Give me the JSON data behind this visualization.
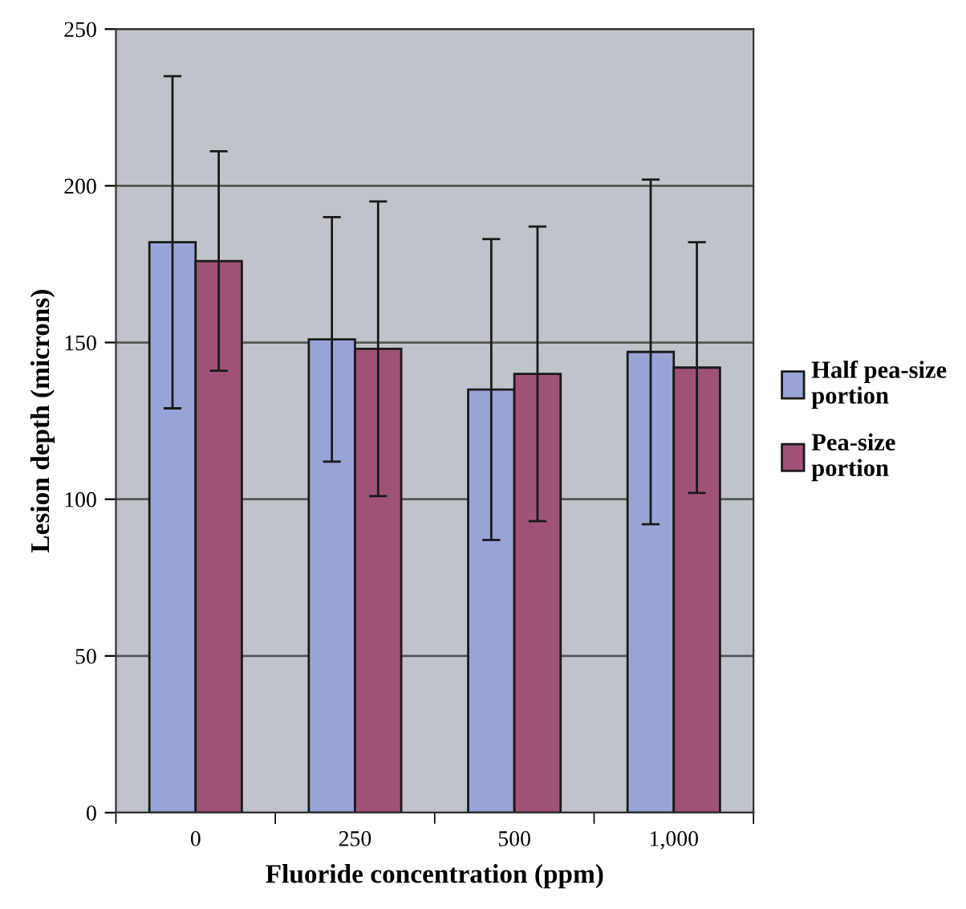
{
  "chart_data": {
    "type": "bar",
    "xlabel": "Fluoride concentration (ppm)",
    "ylabel": "Lesion depth (microns)",
    "categories": [
      "0",
      "250",
      "500",
      "1,000"
    ],
    "series": [
      {
        "name": "Half pea-size\nportion",
        "color": "#9aa3d6",
        "values": [
          182,
          151,
          135,
          147
        ],
        "errors": [
          53,
          39,
          48,
          55
        ]
      },
      {
        "name": "Pea-size\nportion",
        "color": "#a05276",
        "values": [
          176,
          148,
          140,
          142
        ],
        "errors": [
          35,
          47,
          47,
          40
        ]
      }
    ],
    "ylim": [
      0,
      250
    ],
    "yticks": [
      0,
      50,
      100,
      150,
      200,
      250
    ],
    "grid": "y",
    "legend": "right"
  }
}
